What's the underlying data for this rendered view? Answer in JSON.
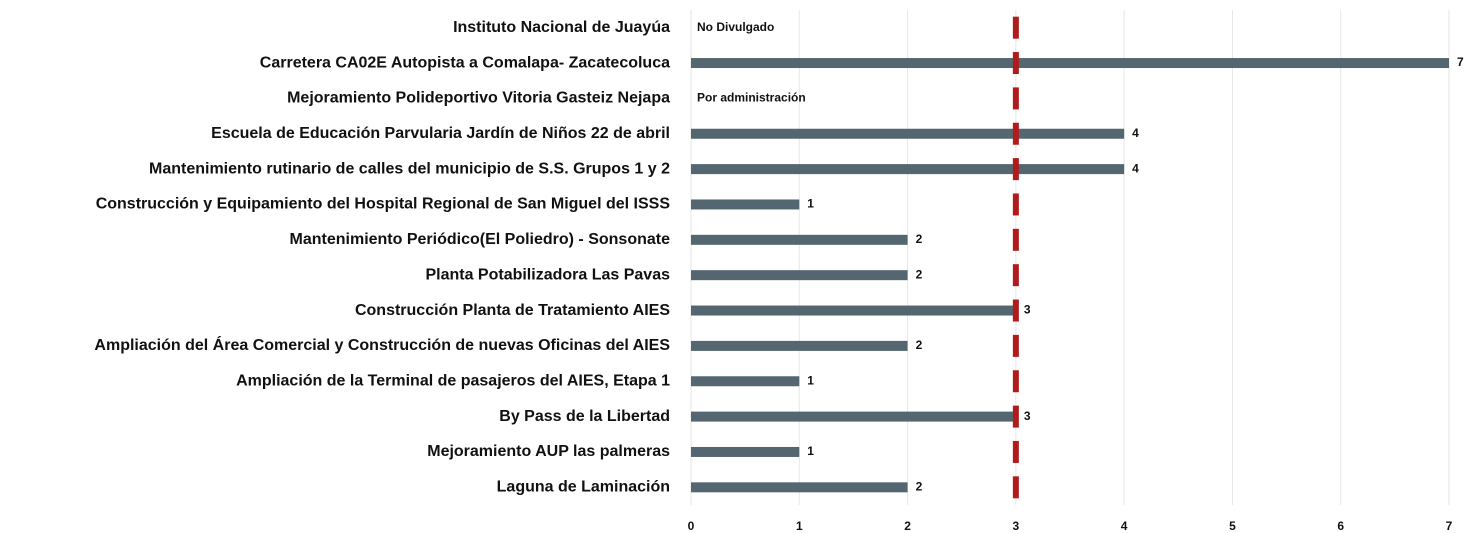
{
  "chart_data": {
    "type": "bar",
    "orientation": "horizontal",
    "categories": [
      "Instituto Nacional de Juayúa",
      "Carretera CA02E Autopista a Comalapa- Zacatecoluca",
      "Mejoramiento  Polideportivo Vitoria Gasteiz Nejapa",
      "Escuela de Educación Parvularia Jardín de Niños 22 de abril",
      "Mantenimiento rutinario de calles del municipio de S.S. Grupos 1 y 2",
      "Construcción y Equipamiento del Hospital Regional de San Miguel del ISSS",
      "Mantenimiento Periódico(El Poliedro) - Sonsonate",
      "Planta Potabilizadora Las Pavas",
      "Construcción  Planta de Tratamiento AIES",
      "Ampliación del Área Comercial y Construcción de nuevas Oficinas del AIES",
      "Ampliación de la Terminal de pasajeros del AIES, Etapa 1",
      "By Pass de la Libertad ",
      "Mejoramiento AUP las palmeras",
      "Laguna de Laminación"
    ],
    "values": [
      null,
      7,
      null,
      4,
      4,
      1,
      2,
      2,
      3,
      2,
      1,
      3,
      1,
      2
    ],
    "value_labels": [
      "No Divulgado",
      null,
      "Por administración",
      null,
      null,
      null,
      null,
      null,
      null,
      null,
      null,
      null,
      null,
      null
    ],
    "color": "#546670",
    "reference_value": 3,
    "reference_color": "#b01c1c",
    "xlim": [
      0,
      7
    ],
    "xticks": [
      0,
      1,
      2,
      3,
      4,
      5,
      6,
      7
    ],
    "grid": true
  }
}
